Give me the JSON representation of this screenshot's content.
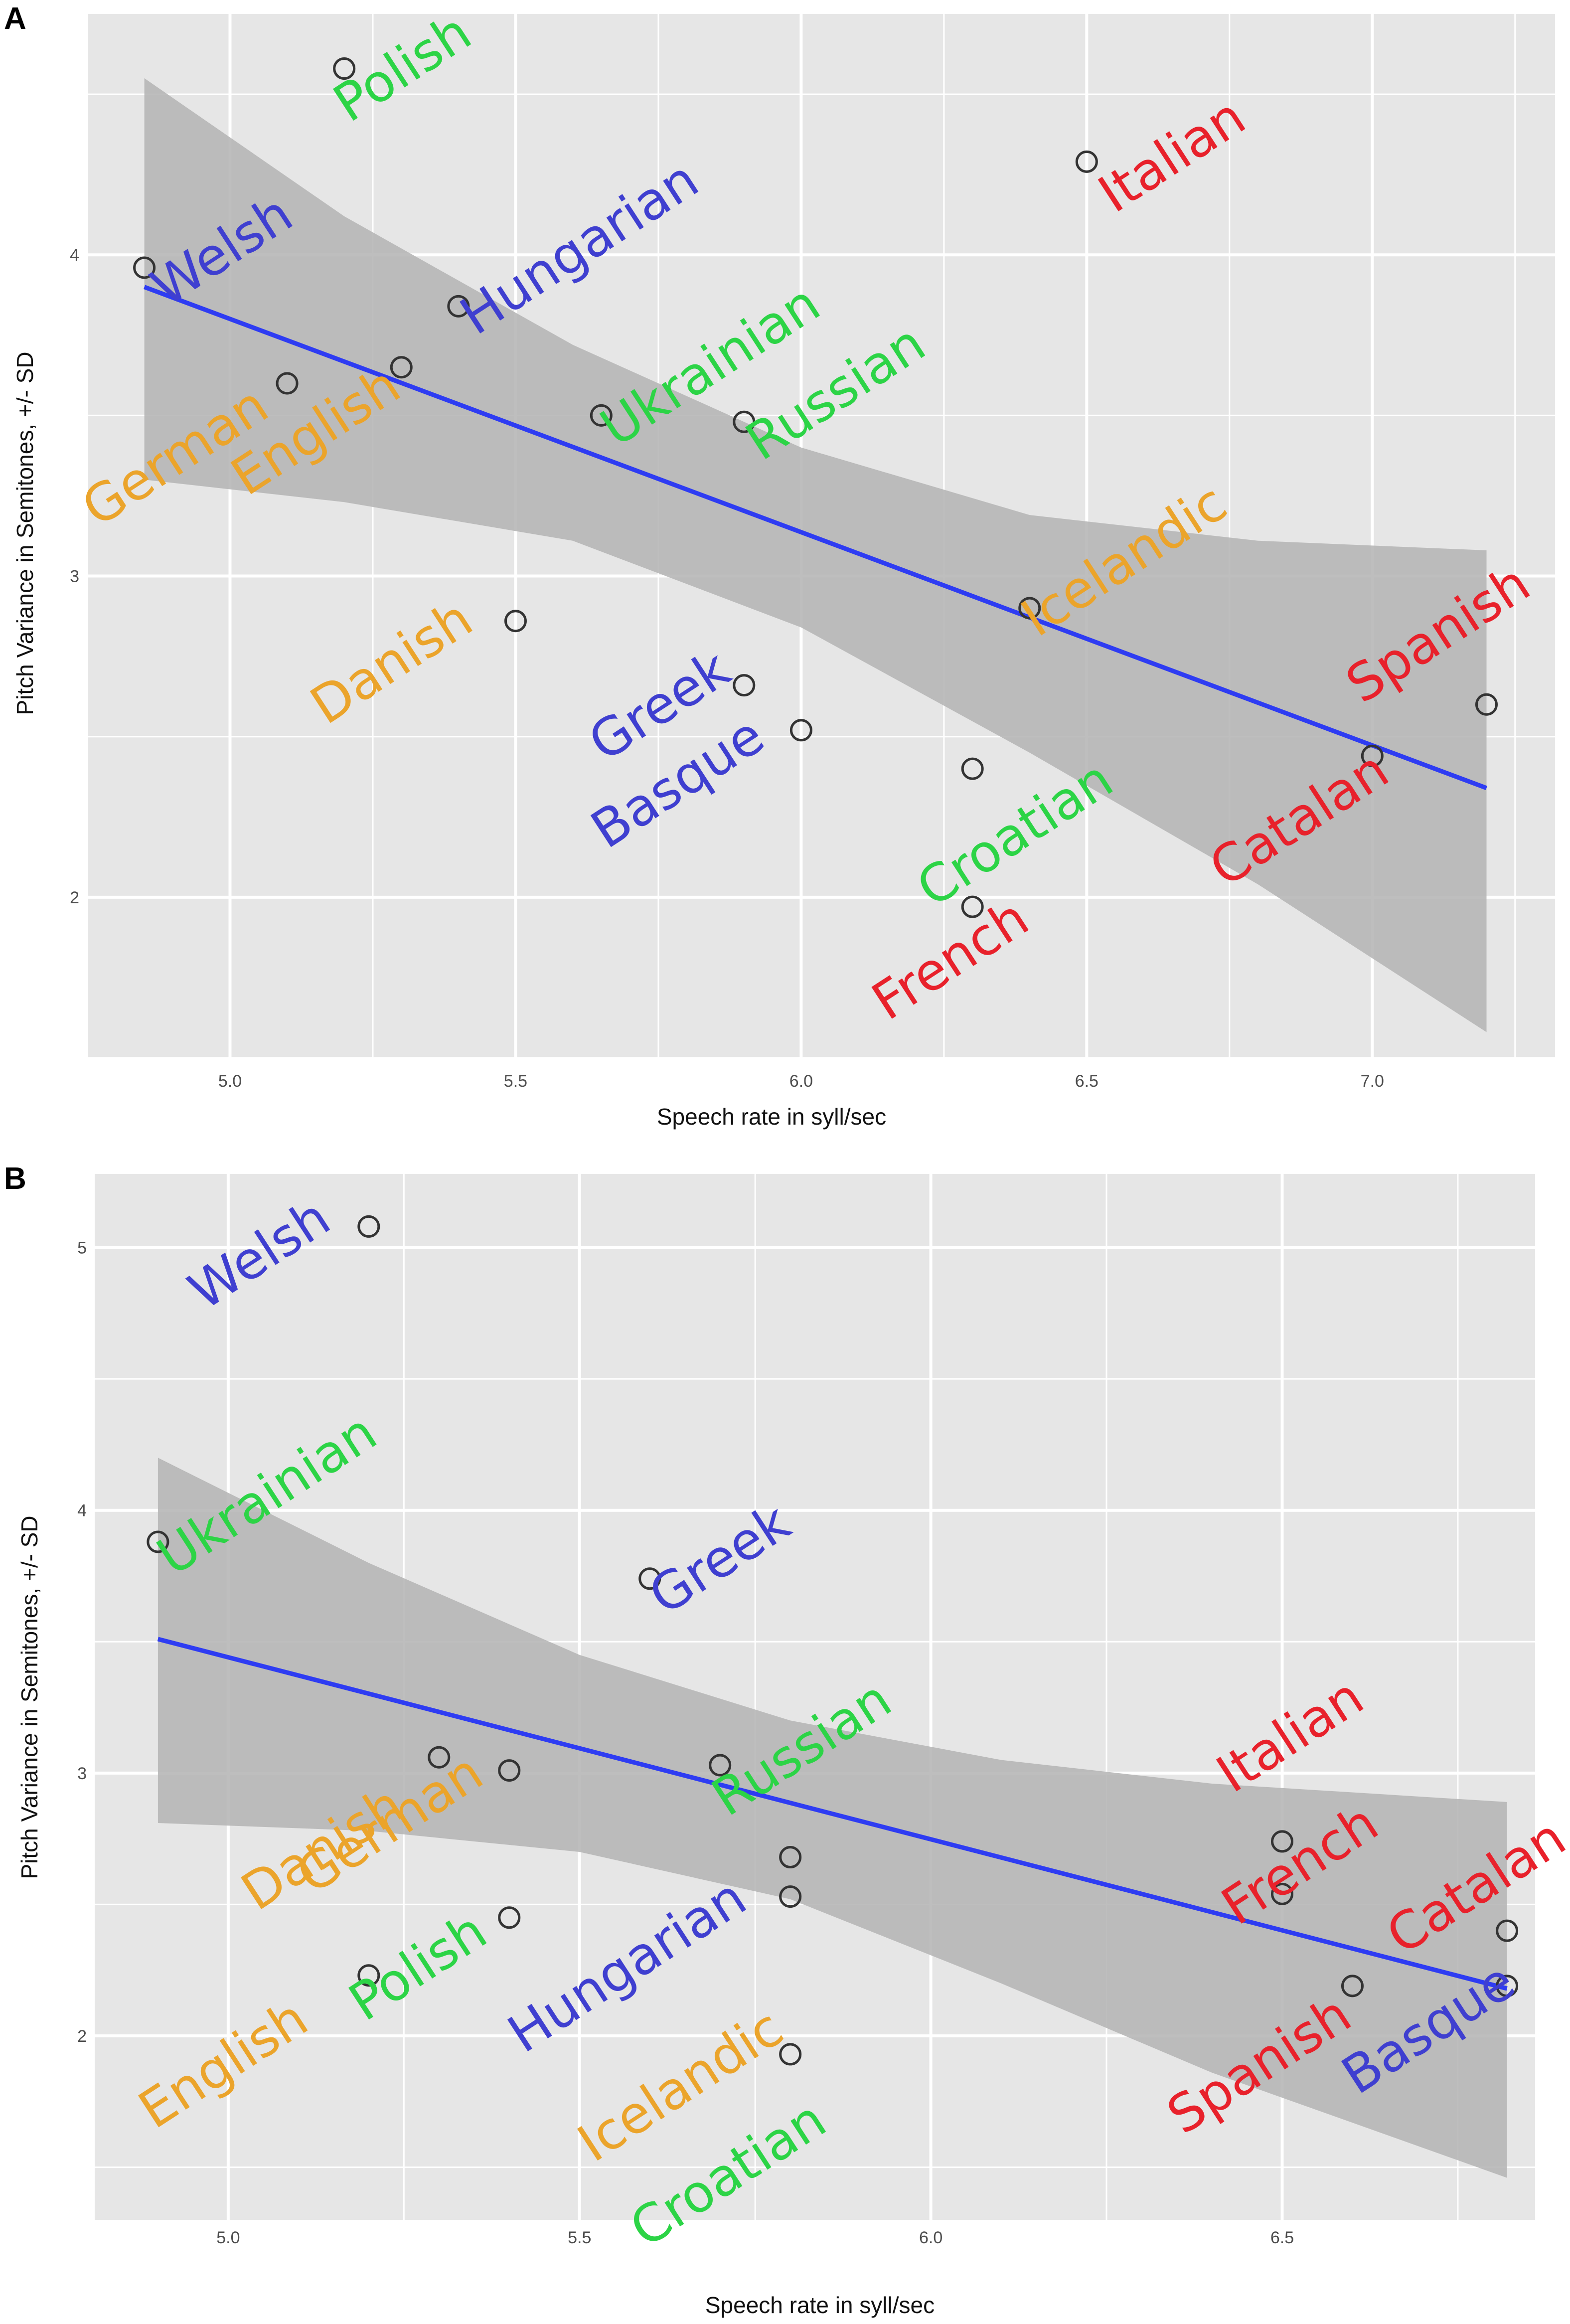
{
  "colors": {
    "panel_bg": "#e6e6e6",
    "grid": "#ffffff",
    "ribbon": "#b3b3b3",
    "fit_line": "#2e3cf2",
    "point_edge": "#333333",
    "red": "#e8212b",
    "green": "#2cd446",
    "blue": "#3f3fd0",
    "orange": "#eba42b"
  },
  "chart_data": [
    {
      "panel": "A",
      "type": "scatter",
      "xlabel": "Speech rate in syll/sec",
      "ylabel": "Pitch Variance in Semitones, +/- SD",
      "xlim": [
        4.75,
        7.32
      ],
      "ylim": [
        1.5,
        4.75
      ],
      "xticks": [
        5.0,
        5.5,
        6.0,
        6.5,
        7.0
      ],
      "xtick_labels": [
        "5.0",
        "5.5",
        "6.0",
        "6.5",
        "7.0"
      ],
      "yticks": [
        2,
        3,
        4
      ],
      "ytick_labels": [
        "2",
        "3",
        "4"
      ],
      "grid": true,
      "points": [
        {
          "label": "Polish",
          "x": 5.2,
          "y": 4.58,
          "color": "green"
        },
        {
          "label": "Italian",
          "x": 6.5,
          "y": 4.29,
          "color": "red"
        },
        {
          "label": "Welsh",
          "x": 4.85,
          "y": 3.96,
          "color": "blue"
        },
        {
          "label": "Hungarian",
          "x": 5.4,
          "y": 3.84,
          "color": "blue"
        },
        {
          "label": "German",
          "x": 5.1,
          "y": 3.6,
          "color": "orange"
        },
        {
          "label": "English",
          "x": 5.3,
          "y": 3.65,
          "color": "orange"
        },
        {
          "label": "Ukrainian",
          "x": 5.65,
          "y": 3.5,
          "color": "green"
        },
        {
          "label": "Russian",
          "x": 5.9,
          "y": 3.48,
          "color": "green"
        },
        {
          "label": "Icelandic",
          "x": 6.4,
          "y": 2.9,
          "color": "orange"
        },
        {
          "label": "Danish",
          "x": 5.5,
          "y": 2.86,
          "color": "orange"
        },
        {
          "label": "Greek",
          "x": 5.9,
          "y": 2.66,
          "color": "blue"
        },
        {
          "label": "Basque",
          "x": 6.0,
          "y": 2.52,
          "color": "blue"
        },
        {
          "label": "Croatian",
          "x": 6.3,
          "y": 2.4,
          "color": "green"
        },
        {
          "label": "Spanish",
          "x": 7.2,
          "y": 2.6,
          "color": "red"
        },
        {
          "label": "Catalan",
          "x": 7.0,
          "y": 2.44,
          "color": "red"
        },
        {
          "label": "French",
          "x": 6.3,
          "y": 1.97,
          "color": "red"
        }
      ],
      "fit": {
        "x": [
          4.85,
          7.2
        ],
        "y": [
          3.9,
          2.34
        ]
      },
      "ribbon": {
        "x": [
          4.85,
          5.2,
          5.6,
          6.0,
          6.4,
          6.8,
          7.2
        ],
        "upper": [
          4.55,
          4.12,
          3.72,
          3.4,
          3.19,
          3.11,
          3.08
        ],
        "lower": [
          3.3,
          3.23,
          3.11,
          2.84,
          2.45,
          2.04,
          1.58
        ]
      }
    },
    {
      "panel": "B",
      "type": "scatter",
      "xlabel": "Speech rate in syll/sec",
      "ylabel": "Pitch Variance in Semitones, +/- SD",
      "xlim": [
        4.81,
        6.86
      ],
      "ylim": [
        1.3,
        5.28
      ],
      "xticks": [
        5.0,
        5.5,
        6.0,
        6.5
      ],
      "xtick_labels": [
        "5.0",
        "5.5",
        "6.0",
        "6.5"
      ],
      "yticks": [
        2,
        3,
        4,
        5
      ],
      "ytick_labels": [
        "2",
        "3",
        "4",
        "5"
      ],
      "grid": true,
      "points": [
        {
          "label": "Welsh",
          "x": 5.2,
          "y": 5.08,
          "color": "blue"
        },
        {
          "label": "Ukrainian",
          "x": 4.9,
          "y": 3.88,
          "color": "green"
        },
        {
          "label": "Greek",
          "x": 5.6,
          "y": 3.74,
          "color": "blue"
        },
        {
          "label": "Russian",
          "x": 5.7,
          "y": 3.03,
          "color": "green"
        },
        {
          "label": "Danish",
          "x": 5.3,
          "y": 3.06,
          "color": "orange"
        },
        {
          "label": "German",
          "x": 5.4,
          "y": 3.01,
          "color": "orange"
        },
        {
          "label": "Hungarian",
          "x": 5.8,
          "y": 2.68,
          "color": "blue"
        },
        {
          "label": "Icelandic",
          "x": 5.8,
          "y": 2.53,
          "color": "orange"
        },
        {
          "label": "Italian",
          "x": 6.5,
          "y": 2.74,
          "color": "red"
        },
        {
          "label": "French",
          "x": 6.5,
          "y": 2.54,
          "color": "red"
        },
        {
          "label": "Polish",
          "x": 5.4,
          "y": 2.45,
          "color": "green"
        },
        {
          "label": "English",
          "x": 5.2,
          "y": 2.23,
          "color": "orange"
        },
        {
          "label": "Catalan",
          "x": 6.82,
          "y": 2.4,
          "color": "red"
        },
        {
          "label": "Basque",
          "x": 6.82,
          "y": 2.19,
          "color": "blue"
        },
        {
          "label": "Spanish",
          "x": 6.6,
          "y": 2.19,
          "color": "red"
        },
        {
          "label": "Croatian",
          "x": 5.8,
          "y": 1.93,
          "color": "green"
        }
      ],
      "fit": {
        "x": [
          4.9,
          6.82
        ],
        "y": [
          3.51,
          2.18
        ]
      },
      "ribbon": {
        "x": [
          4.9,
          5.2,
          5.5,
          5.8,
          6.1,
          6.4,
          6.82
        ],
        "upper": [
          4.2,
          3.8,
          3.45,
          3.2,
          3.05,
          2.96,
          2.89
        ],
        "lower": [
          2.81,
          2.78,
          2.7,
          2.52,
          2.2,
          1.86,
          1.46
        ]
      }
    }
  ]
}
